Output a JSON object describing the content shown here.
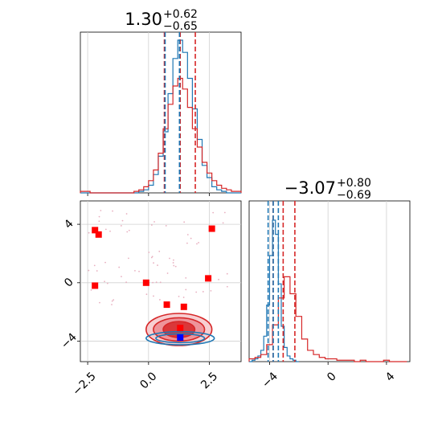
{
  "chart_data": [
    {
      "type": "histogram",
      "panel": "top-left",
      "title": {
        "value": "1.30",
        "plus": "+0.62",
        "minus": "−0.65"
      },
      "xlim": [
        -2.8,
        3.8
      ],
      "x_ticks": [
        -2.5,
        0.0,
        2.5
      ],
      "series": [
        {
          "color": "#1f77b4",
          "bins": [
            -2.8,
            -2.6,
            -2.4,
            -2.2,
            -2.0,
            -1.8,
            -1.6,
            -1.4,
            -1.2,
            -1.0,
            -0.8,
            -0.6,
            -0.4,
            -0.2,
            0.0,
            0.2,
            0.4,
            0.6,
            0.8,
            1.0,
            1.2,
            1.4,
            1.6,
            1.8,
            2.0,
            2.2,
            2.4,
            2.6,
            2.8,
            3.0,
            3.2,
            3.4,
            3.6,
            3.8
          ],
          "counts": [
            0,
            0,
            0,
            0,
            0,
            0,
            0,
            0,
            0,
            0,
            0,
            0,
            1,
            2,
            5,
            12,
            24,
            40,
            65,
            88,
            100,
            92,
            75,
            55,
            35,
            18,
            10,
            4,
            2,
            1,
            0,
            0,
            0
          ]
        },
        {
          "color": "#d62728",
          "bins": [
            -2.8,
            -2.6,
            -2.4,
            -2.2,
            -2.0,
            -1.8,
            -1.6,
            -1.4,
            -1.2,
            -1.0,
            -0.8,
            -0.6,
            -0.4,
            -0.2,
            0.0,
            0.2,
            0.4,
            0.6,
            0.8,
            1.0,
            1.2,
            1.4,
            1.6,
            1.8,
            2.0,
            2.2,
            2.4,
            2.6,
            2.8,
            3.0,
            3.2,
            3.4,
            3.6,
            3.8
          ],
          "counts": [
            1,
            1,
            0,
            0,
            0,
            0,
            0,
            0,
            0,
            0,
            0,
            1,
            2,
            4,
            8,
            15,
            26,
            42,
            58,
            70,
            75,
            68,
            56,
            42,
            30,
            20,
            13,
            8,
            5,
            3,
            2,
            1,
            1
          ]
        }
      ],
      "quantile_lines": [
        {
          "color": "#d62728",
          "values": [
            0.65,
            1.3,
            1.92
          ]
        },
        {
          "color": "#1f77b4",
          "values": [
            0.68,
            1.27
          ]
        }
      ]
    },
    {
      "type": "scatter-contour",
      "panel": "bottom-left",
      "xlim": [
        -2.8,
        3.8
      ],
      "ylim": [
        -5.4,
        5.6
      ],
      "x_ticks": [
        -2.5,
        0.0,
        2.5
      ],
      "y_ticks": [
        -4,
        0,
        4
      ],
      "markers": {
        "color": "#ff0000",
        "points": [
          [
            -2.2,
            3.6
          ],
          [
            -2.05,
            3.3
          ],
          [
            -2.2,
            -0.2
          ],
          [
            -0.1,
            0.0
          ],
          [
            0.75,
            -1.5
          ],
          [
            1.45,
            -1.65
          ],
          [
            1.3,
            -3.1
          ],
          [
            2.6,
            3.7
          ],
          [
            2.45,
            0.3
          ]
        ]
      },
      "truth_marker": {
        "color": "#0000ff",
        "point": [
          1.3,
          -3.75
        ]
      },
      "contours": [
        {
          "color": "#d62728",
          "center": [
            1.25,
            -3.2
          ],
          "radii": [
            [
              1.35,
              1.1
            ],
            [
              1.05,
              0.8
            ],
            [
              0.65,
              0.55
            ]
          ]
        },
        {
          "color": "#1f77b4",
          "center": [
            1.3,
            -3.8
          ],
          "radii": [
            [
              1.4,
              0.45
            ],
            [
              1.0,
              0.3
            ]
          ]
        }
      ]
    },
    {
      "type": "histogram",
      "panel": "bottom-right",
      "title": {
        "value": "−3.07",
        "plus": "+0.80",
        "minus": "−0.69"
      },
      "xlim": [
        -5.4,
        5.6
      ],
      "x_ticks": [
        -4,
        0,
        4
      ],
      "series": [
        {
          "color": "#1f77b4",
          "bins": [
            -5.4,
            -5.2,
            -5.0,
            -4.8,
            -4.6,
            -4.4,
            -4.2,
            -4.0,
            -3.8,
            -3.6,
            -3.4,
            -3.2,
            -3.0,
            -2.8,
            -2.6,
            -2.4,
            -2.2,
            -2.0
          ],
          "counts": [
            0,
            1,
            2,
            4,
            8,
            18,
            40,
            75,
            100,
            90,
            55,
            25,
            10,
            4,
            2,
            1,
            0
          ]
        },
        {
          "color": "#d62728",
          "bins": [
            -5.4,
            -5.0,
            -4.6,
            -4.2,
            -3.8,
            -3.4,
            -3.0,
            -2.6,
            -2.2,
            -1.8,
            -1.4,
            -1.0,
            -0.6,
            -0.2,
            0.2,
            0.6,
            1.0,
            1.4,
            1.8,
            2.2,
            2.6,
            3.0,
            3.4,
            3.8,
            4.2,
            4.6,
            5.0,
            5.4
          ],
          "counts": [
            2,
            3,
            5,
            12,
            26,
            45,
            60,
            48,
            32,
            16,
            8,
            5,
            3,
            2,
            2,
            1,
            1,
            1,
            0,
            1,
            0,
            0,
            0,
            1,
            0,
            0,
            0
          ]
        }
      ],
      "quantile_lines": [
        {
          "color": "#d62728",
          "values": [
            -3.76,
            -3.07,
            -2.27
          ]
        },
        {
          "color": "#1f77b4",
          "values": [
            -4.1,
            -3.75,
            -3.4
          ]
        }
      ]
    }
  ]
}
